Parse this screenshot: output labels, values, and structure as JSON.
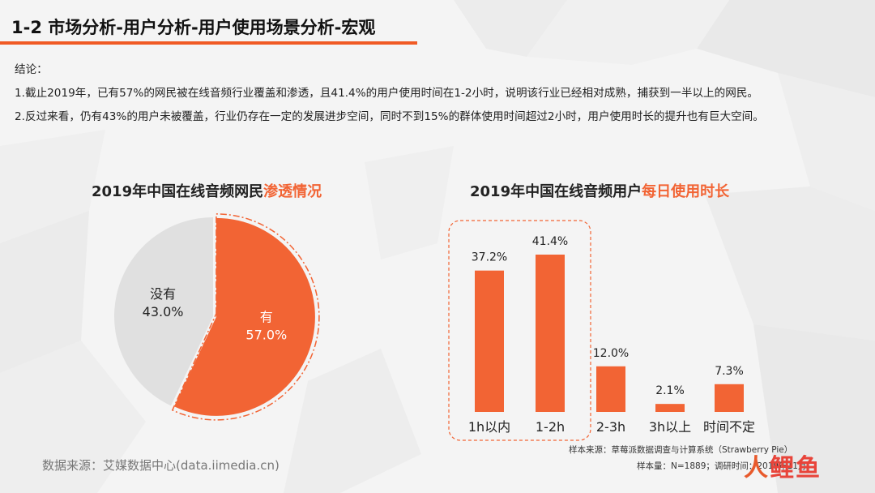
{
  "header": {
    "title": "1-2 市场分析-用户分析-用户使用场景分析-宏观"
  },
  "conclusion": {
    "label": "结论：",
    "line1": "1.截止2019年，已有57%的网民被在线音频行业覆盖和渗透，且41.4%的用户使用时间在1-2小时，说明该行业已经相对成熟，捕获到一半以上的网民。",
    "line2": "2.反过来看，仍有43%的用户未被覆盖，行业仍存在一定的发展进步空间，同时不到15%的群体使用时间超过2小时，用户使用时长的提升也有巨大空间。"
  },
  "pie_title": {
    "prefix": "2019年中国在线音频网民",
    "highlight": "渗透情况"
  },
  "bar_title": {
    "prefix": "2019年中国在线音频用户",
    "highlight": "每日使用时长"
  },
  "notes": {
    "sample_source": "样本来源：草莓派数据调查与计算系统（Strawberry Pie）",
    "sample_size": "样本量：N=1889；调研时间：2019年11月"
  },
  "source": "数据来源：艾媒数据中心(data.iimedia.cn)",
  "watermark": {
    "part1": "人",
    "part2": "鲤鱼"
  },
  "colors": {
    "accent": "#f26434",
    "gray_slice": "#e0e0e0",
    "header_bar": "#f05a24"
  },
  "chart_data": [
    {
      "type": "pie",
      "title": "2019年中国在线音频网民渗透情况",
      "slices": [
        {
          "name": "有",
          "value": 57.0,
          "label": "57.0%",
          "color": "#f26434"
        },
        {
          "name": "没有",
          "value": 43.0,
          "label": "43.0%",
          "color": "#e0e0e0"
        }
      ]
    },
    {
      "type": "bar",
      "title": "2019年中国在线音频用户每日使用时长",
      "categories": [
        "1h以内",
        "1-2h",
        "2-3h",
        "3h以上",
        "时间不定"
      ],
      "values": [
        37.2,
        41.4,
        12.0,
        2.1,
        7.3
      ],
      "value_labels": [
        "37.2%",
        "41.4%",
        "12.0%",
        "2.1%",
        "7.3%"
      ],
      "highlighted_categories": [
        "1h以内",
        "1-2h"
      ],
      "color": "#f26434"
    }
  ]
}
